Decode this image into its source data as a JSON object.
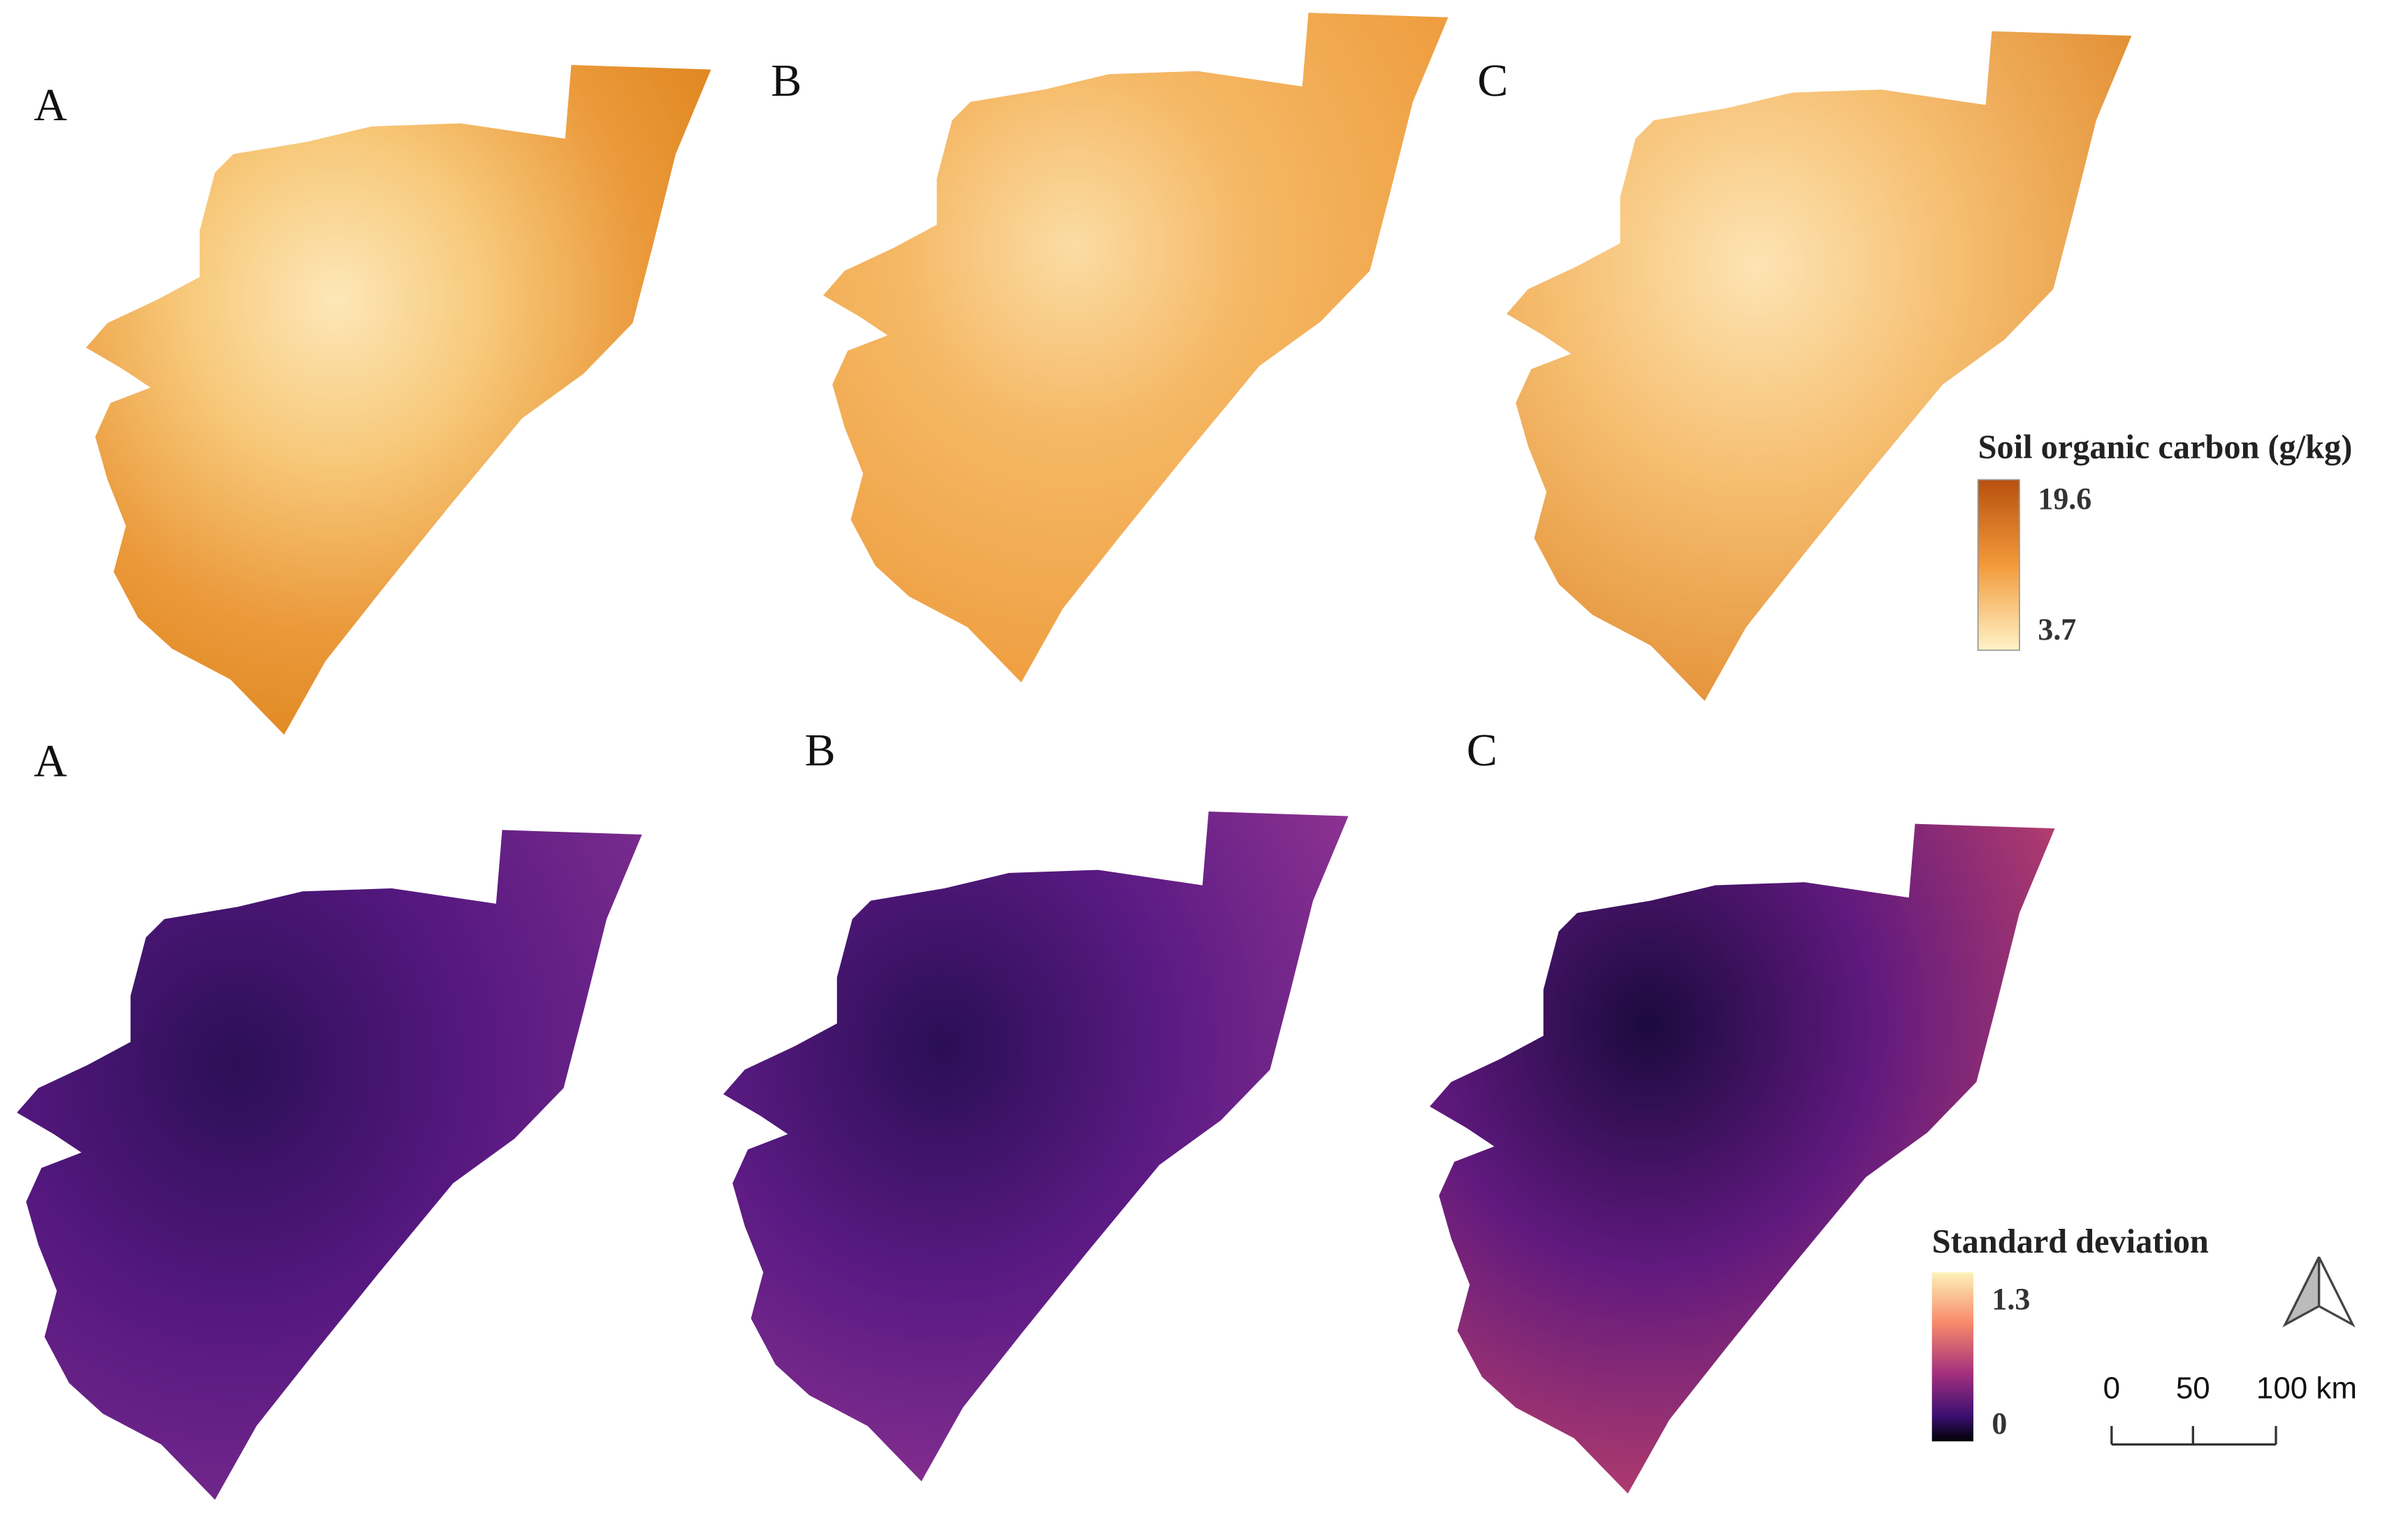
{
  "panels_top": [
    "A",
    "B",
    "C"
  ],
  "panels_bottom": [
    "A",
    "B",
    "C"
  ],
  "legend_soc": {
    "title": "Soil organic carbon (g/kg)",
    "max": "19.6",
    "min": "3.7"
  },
  "legend_sd": {
    "title": "Standard deviation",
    "max": "1.3",
    "min": "0"
  },
  "scale_bar": [
    "0",
    "50",
    "100 km"
  ]
}
